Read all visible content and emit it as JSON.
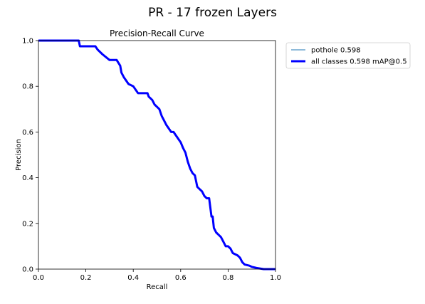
{
  "figure": {
    "suptitle": "PR - 17 frozen Layers"
  },
  "chart_data": {
    "type": "line",
    "title": "Precision-Recall Curve",
    "xlabel": "Recall",
    "ylabel": "Precision",
    "xlim": [
      0,
      1
    ],
    "ylim": [
      0,
      1
    ],
    "xticks": [
      "0.0",
      "0.2",
      "0.4",
      "0.6",
      "0.8",
      "1.0"
    ],
    "yticks": [
      "0.0",
      "0.2",
      "0.4",
      "0.6",
      "0.8",
      "1.0"
    ],
    "grid": false,
    "legend_position": "outside-upper-right",
    "series": [
      {
        "name": "pothole 0.598",
        "color": "#1f77b4",
        "linewidth": "thin",
        "x": [
          0,
          0.17,
          0.175,
          0.24,
          0.25,
          0.27,
          0.3,
          0.33,
          0.345,
          0.35,
          0.36,
          0.38,
          0.4,
          0.42,
          0.46,
          0.465,
          0.48,
          0.49,
          0.5,
          0.51,
          0.52,
          0.53,
          0.54,
          0.56,
          0.57,
          0.58,
          0.6,
          0.61,
          0.62,
          0.63,
          0.64,
          0.65,
          0.66,
          0.67,
          0.68,
          0.685,
          0.69,
          0.7,
          0.71,
          0.72,
          0.73,
          0.735,
          0.74,
          0.745,
          0.75,
          0.76,
          0.77,
          0.78,
          0.79,
          0.8,
          0.81,
          0.82,
          0.84,
          0.85,
          0.86,
          0.87,
          0.89,
          0.9,
          0.92,
          0.95,
          1.0
        ],
        "y": [
          1.0,
          1.0,
          0.975,
          0.975,
          0.96,
          0.94,
          0.915,
          0.915,
          0.89,
          0.86,
          0.84,
          0.81,
          0.8,
          0.77,
          0.77,
          0.755,
          0.74,
          0.72,
          0.71,
          0.7,
          0.67,
          0.65,
          0.63,
          0.6,
          0.6,
          0.585,
          0.555,
          0.53,
          0.51,
          0.47,
          0.44,
          0.42,
          0.41,
          0.36,
          0.35,
          0.345,
          0.34,
          0.32,
          0.31,
          0.31,
          0.23,
          0.23,
          0.18,
          0.17,
          0.16,
          0.15,
          0.14,
          0.12,
          0.1,
          0.1,
          0.09,
          0.07,
          0.06,
          0.05,
          0.03,
          0.02,
          0.015,
          0.01,
          0.005,
          0.0,
          0.0
        ]
      },
      {
        "name": "all classes 0.598 mAP@0.5",
        "color": "#0000ff",
        "linewidth": "thick",
        "x": [
          0,
          0.17,
          0.175,
          0.24,
          0.25,
          0.27,
          0.3,
          0.33,
          0.345,
          0.35,
          0.36,
          0.38,
          0.4,
          0.42,
          0.46,
          0.465,
          0.48,
          0.49,
          0.5,
          0.51,
          0.52,
          0.53,
          0.54,
          0.56,
          0.57,
          0.58,
          0.6,
          0.61,
          0.62,
          0.63,
          0.64,
          0.65,
          0.66,
          0.67,
          0.68,
          0.685,
          0.69,
          0.7,
          0.71,
          0.72,
          0.73,
          0.735,
          0.74,
          0.745,
          0.75,
          0.76,
          0.77,
          0.78,
          0.79,
          0.8,
          0.81,
          0.82,
          0.84,
          0.85,
          0.86,
          0.87,
          0.89,
          0.9,
          0.92,
          0.95,
          1.0
        ],
        "y": [
          1.0,
          1.0,
          0.975,
          0.975,
          0.96,
          0.94,
          0.915,
          0.915,
          0.89,
          0.86,
          0.84,
          0.81,
          0.8,
          0.77,
          0.77,
          0.755,
          0.74,
          0.72,
          0.71,
          0.7,
          0.67,
          0.65,
          0.63,
          0.6,
          0.6,
          0.585,
          0.555,
          0.53,
          0.51,
          0.47,
          0.44,
          0.42,
          0.41,
          0.36,
          0.35,
          0.345,
          0.34,
          0.32,
          0.31,
          0.31,
          0.23,
          0.23,
          0.18,
          0.17,
          0.16,
          0.15,
          0.14,
          0.12,
          0.1,
          0.1,
          0.09,
          0.07,
          0.06,
          0.05,
          0.03,
          0.02,
          0.015,
          0.01,
          0.005,
          0.0,
          0.0
        ]
      }
    ]
  }
}
